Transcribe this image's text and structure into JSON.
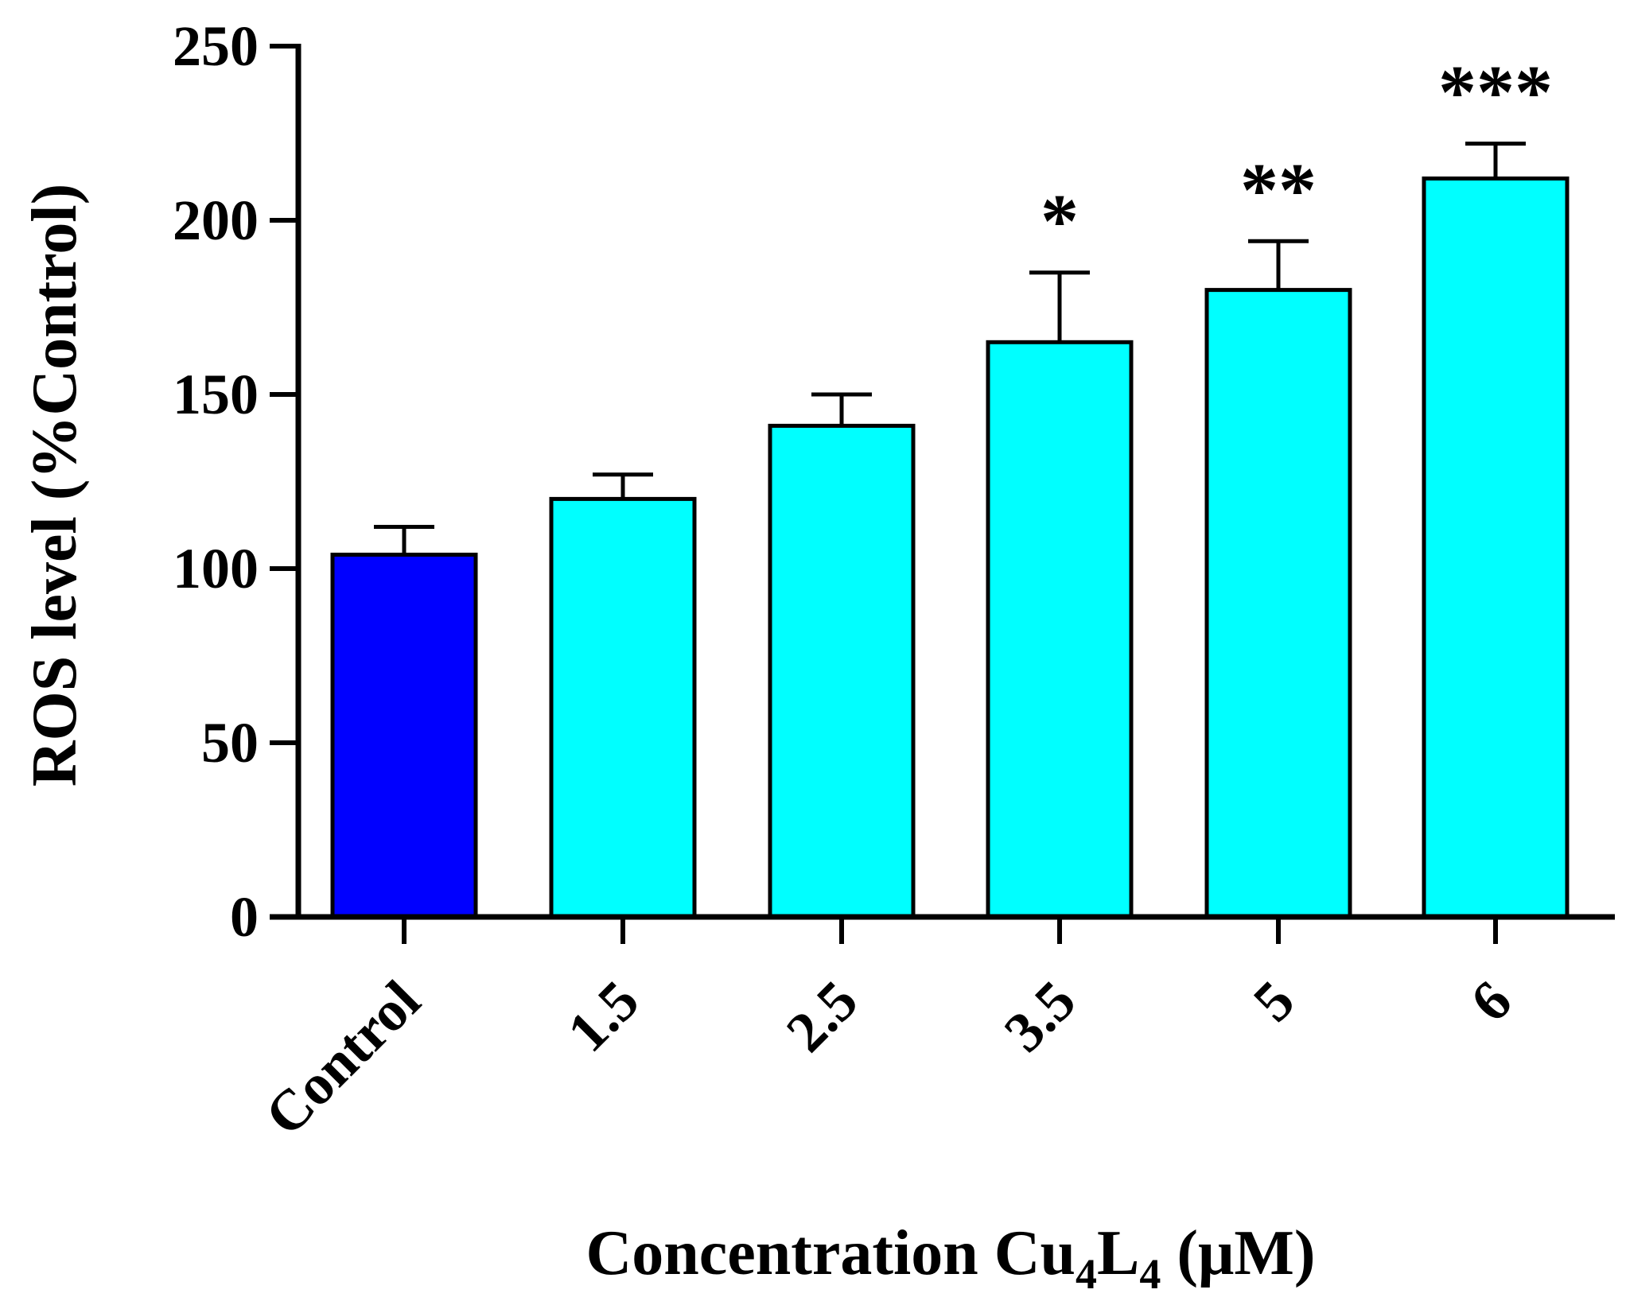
{
  "chart_data": {
    "type": "bar",
    "title": "",
    "xlabel_main": "Concentration Cu",
    "xlabel_sub1": "4",
    "xlabel_mid": "L",
    "xlabel_sub2": "4",
    "xlabel_tail": " (μM)",
    "ylabel": "ROS level (%Control)",
    "categories": [
      "Control",
      "1.5",
      "2.5",
      "3.5",
      "5",
      "6"
    ],
    "values": [
      104,
      120,
      141,
      165,
      180,
      212
    ],
    "errors": [
      8,
      7,
      9,
      20,
      14,
      10
    ],
    "significance": [
      "",
      "",
      "",
      "*",
      "**",
      "***"
    ],
    "colors": [
      "#0000ff",
      "#00ffff",
      "#00ffff",
      "#00ffff",
      "#00ffff",
      "#00ffff"
    ],
    "ylim": [
      0,
      250
    ],
    "yticks": [
      "0",
      "50",
      "100",
      "150",
      "200",
      "250"
    ],
    "grid": false
  }
}
